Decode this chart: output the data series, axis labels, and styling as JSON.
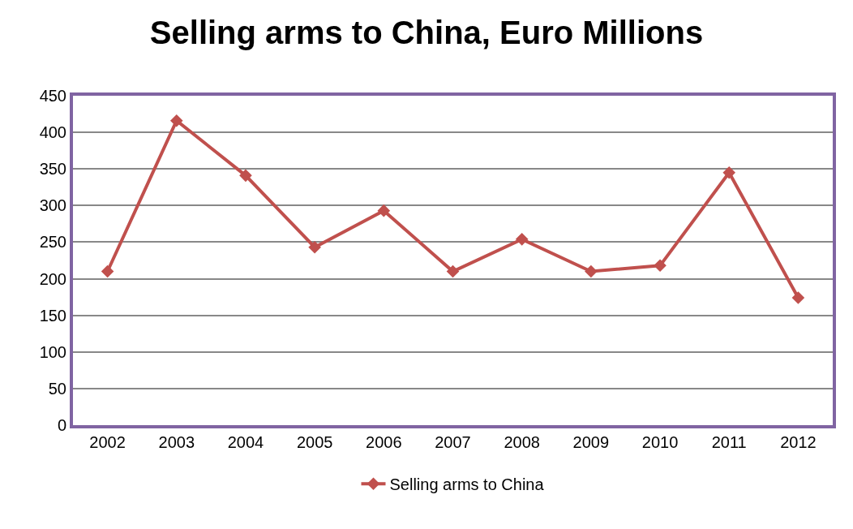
{
  "chart_data": {
    "type": "line",
    "title": "Selling arms to China, Euro Millions",
    "categories": [
      "2002",
      "2003",
      "2004",
      "2005",
      "2006",
      "2007",
      "2008",
      "2009",
      "2010",
      "2011",
      "2012"
    ],
    "series": [
      {
        "name": "Selling arms to China",
        "color": "#c0504d",
        "values": [
          210,
          416,
          341,
          243,
          293,
          210,
          254,
          210,
          218,
          345,
          174
        ]
      }
    ],
    "ylim": [
      0,
      450
    ],
    "yticks": [
      0,
      50,
      100,
      150,
      200,
      250,
      300,
      350,
      400,
      450
    ],
    "grid": "y",
    "legend": "bottom",
    "marker": "diamond",
    "line_style": "solid"
  }
}
